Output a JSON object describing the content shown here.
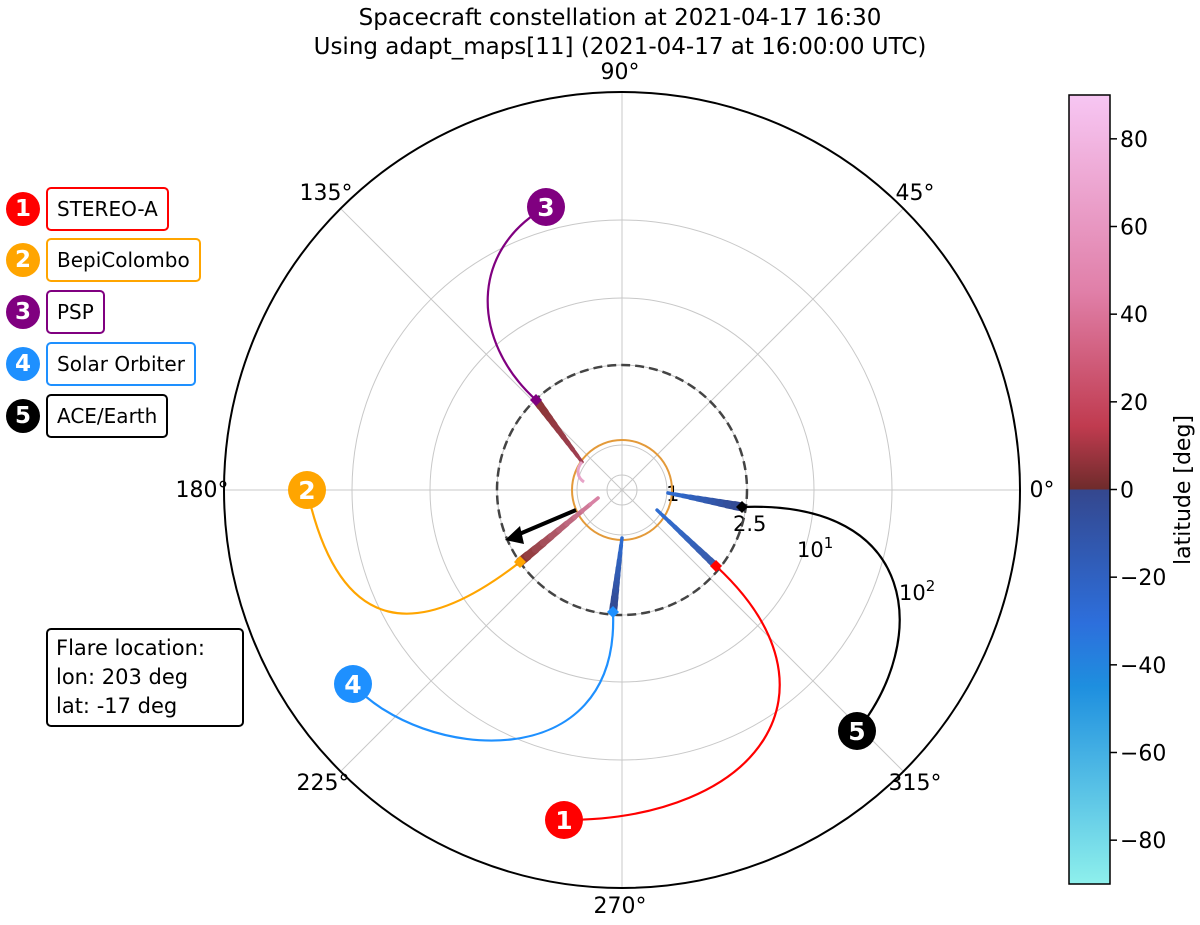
{
  "chart_data": {
    "type": "polar-spiral",
    "title": "Spacecraft constellation at 2021-04-17 16:30",
    "subtitle": "Using adapt_maps[11] (2021-04-17 at 16:00:00 UTC)",
    "angle_ticks": [
      "0°",
      "45°",
      "90°",
      "135°",
      "180°",
      "225°",
      "270°",
      "315°"
    ],
    "radial_tick_labels": [
      "1",
      "2.5"
    ],
    "radial_tick_labels_log": [
      {
        "base": "10",
        "exp": "1"
      },
      {
        "base": "10",
        "exp": "2"
      }
    ],
    "source_surface_radius": 2.5,
    "colorbar": {
      "label": "latitude [deg]",
      "range": [
        -90,
        90
      ],
      "ticks": [
        "80",
        "60",
        "40",
        "20",
        "0",
        "−20",
        "−40",
        "−60",
        "−80"
      ],
      "colors": {
        "90": "#f7c6f3",
        "45": "#e07fa8",
        "15": "#c03b4f",
        "0_pos": "#6e2b2b",
        "0_neg": "#34478e",
        "-30": "#2d6fdc",
        "-45": "#1e8fdf",
        "-90": "#8ef0ec"
      }
    },
    "spacecraft": [
      {
        "num": "1",
        "name": "STEREO-A",
        "color": "#ff0000",
        "lon_deg": 274.5,
        "ss_lon_deg": 317.4,
        "foot_lon_deg": 324,
        "foot_lat_deg": -20
      },
      {
        "num": "2",
        "name": "BepiColombo",
        "color": "#ffa500",
        "lon_deg": 180.0,
        "ss_lon_deg": 226.3,
        "foot_lon_deg": 203,
        "foot_lat_deg": 18
      },
      {
        "num": "3",
        "name": "PSP",
        "color": "#800080",
        "lon_deg": 108.7,
        "ss_lon_deg": 127.5,
        "foot_lon_deg": 150,
        "foot_lat_deg": 40
      },
      {
        "num": "4",
        "name": "Solar Orbiter",
        "color": "#1e90ff",
        "lon_deg": 216.2,
        "ss_lon_deg": 264.2,
        "foot_lon_deg": 273,
        "foot_lat_deg": -18
      },
      {
        "num": "5",
        "name": "ACE/Earth",
        "color": "#000000",
        "lon_deg": 319.0,
        "ss_lon_deg": 357.6,
        "foot_lon_deg": 5,
        "foot_lat_deg": -10
      }
    ],
    "flare": {
      "lon_deg": 203,
      "lat_deg": -17
    }
  },
  "flare_box": {
    "heading": "Flare location:",
    "lon_text": "lon: 203 deg",
    "lat_text": "lat: -17 deg"
  }
}
